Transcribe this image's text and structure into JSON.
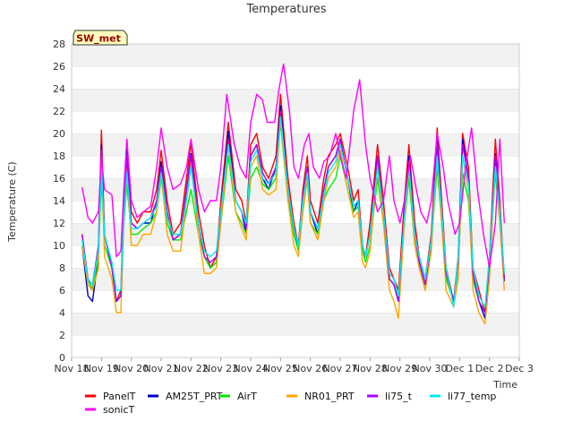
{
  "chart_data": {
    "type": "line",
    "title": "Temperatures",
    "xlabel": "Time",
    "ylabel": "Temperature (C)",
    "site_label": "SW_met",
    "ylim": [
      0,
      28
    ],
    "yticks": [
      0,
      2,
      4,
      6,
      8,
      10,
      12,
      14,
      16,
      18,
      20,
      22,
      24,
      26,
      28
    ],
    "xlim": [
      0,
      15
    ],
    "xticks": [
      {
        "pos": 0,
        "label": "Nov 18"
      },
      {
        "pos": 1,
        "label": "Nov 19"
      },
      {
        "pos": 2,
        "label": "Nov 20"
      },
      {
        "pos": 3,
        "label": "Nov 21"
      },
      {
        "pos": 4,
        "label": "Nov 22"
      },
      {
        "pos": 5,
        "label": "Nov 23"
      },
      {
        "pos": 6,
        "label": "Nov 24"
      },
      {
        "pos": 7,
        "label": "Nov 25"
      },
      {
        "pos": 8,
        "label": "Nov 26"
      },
      {
        "pos": 9,
        "label": "Nov 27"
      },
      {
        "pos": 10,
        "label": "Nov 28"
      },
      {
        "pos": 11,
        "label": "Nov 29"
      },
      {
        "pos": 12,
        "label": "Nov 30"
      },
      {
        "pos": 13,
        "label": "Dec 1"
      },
      {
        "pos": 14,
        "label": "Dec 2"
      },
      {
        "pos": 15,
        "label": "Dec 3"
      }
    ],
    "grid": "horizontal bands",
    "legend_position": "bottom",
    "series": [
      {
        "name": "PanelT",
        "color": "#ff0000",
        "x": [
          0.35,
          0.55,
          0.7,
          0.9,
          1.0,
          1.1,
          1.35,
          1.5,
          1.65,
          1.75,
          1.85,
          2.0,
          2.2,
          2.4,
          2.65,
          2.85,
          3.0,
          3.2,
          3.4,
          3.65,
          3.85,
          4.0,
          4.25,
          4.45,
          4.65,
          4.85,
          5.0,
          5.25,
          5.5,
          5.7,
          5.85,
          6.0,
          6.2,
          6.4,
          6.6,
          6.85,
          7.0,
          7.25,
          7.45,
          7.6,
          7.75,
          7.9,
          8.0,
          8.25,
          8.45,
          8.6,
          8.85,
          9.0,
          9.25,
          9.45,
          9.6,
          9.75,
          9.85,
          10.0,
          10.25,
          10.45,
          10.65,
          10.8,
          10.95,
          11.15,
          11.3,
          11.5,
          11.65,
          11.85,
          12.05,
          12.25,
          12.4,
          12.55,
          12.8,
          12.95,
          13.1,
          13.3,
          13.45,
          13.65,
          13.85,
          14.0,
          14.2,
          14.35,
          14.5
        ],
        "y": [
          11,
          7,
          6,
          10,
          20.3,
          11,
          8,
          5,
          6,
          14,
          19.5,
          13,
          12,
          13,
          13,
          15,
          18.5,
          14,
          11,
          12,
          16,
          19.2,
          13,
          10,
          8,
          9,
          14,
          21,
          15,
          14,
          12,
          19,
          20,
          17,
          16,
          18,
          23.5,
          16,
          12,
          10,
          15,
          18,
          14,
          12,
          16,
          18,
          19,
          20,
          17,
          14,
          15,
          10,
          9,
          12,
          19,
          14,
          8,
          7,
          6,
          14,
          19,
          12,
          9,
          7,
          11,
          20.5,
          14,
          8,
          5,
          9,
          20,
          17,
          8,
          6,
          4,
          9,
          19.5,
          14,
          7
        ]
      },
      {
        "name": "AM25T_PRT",
        "color": "#0000cc",
        "x": [
          0.35,
          0.55,
          0.7,
          0.9,
          1.0,
          1.1,
          1.35,
          1.5,
          1.65,
          1.75,
          1.85,
          2.0,
          2.2,
          2.4,
          2.65,
          2.85,
          3.0,
          3.2,
          3.4,
          3.65,
          3.85,
          4.0,
          4.25,
          4.45,
          4.65,
          4.85,
          5.0,
          5.25,
          5.5,
          5.7,
          5.85,
          6.0,
          6.2,
          6.4,
          6.6,
          6.85,
          7.0,
          7.25,
          7.45,
          7.6,
          7.75,
          7.9,
          8.0,
          8.25,
          8.45,
          8.6,
          8.85,
          9.0,
          9.25,
          9.45,
          9.6,
          9.75,
          9.85,
          10.0,
          10.25,
          10.45,
          10.65,
          10.8,
          10.95,
          11.15,
          11.3,
          11.5,
          11.65,
          11.85,
          12.05,
          12.25,
          12.4,
          12.55,
          12.8,
          12.95,
          13.1,
          13.3,
          13.45,
          13.65,
          13.85,
          14.0,
          14.2,
          14.35,
          14.5
        ],
        "y": [
          10,
          5.5,
          5,
          9,
          19,
          11,
          8,
          5,
          5.5,
          13,
          18.5,
          12,
          11.5,
          12,
          12,
          14,
          17.5,
          13,
          10.5,
          11,
          15,
          18.2,
          12,
          9,
          8,
          8.5,
          13,
          20.2,
          14,
          13,
          11,
          18,
          19,
          16,
          15,
          17,
          22.5,
          15,
          11,
          10,
          14,
          17,
          13,
          11,
          15,
          17,
          18,
          19.5,
          16,
          13,
          14,
          9.5,
          9,
          11,
          18,
          13,
          7,
          6.5,
          5,
          13,
          18,
          11,
          8.5,
          6.5,
          10,
          19.5,
          13,
          7.5,
          5,
          8,
          19.5,
          16,
          7,
          5,
          3.5,
          8,
          18.2,
          13,
          6.8
        ]
      },
      {
        "name": "AirT",
        "color": "#00ee00",
        "x": [
          0.35,
          0.55,
          0.7,
          0.9,
          1.0,
          1.1,
          1.35,
          1.5,
          1.65,
          1.75,
          1.85,
          2.0,
          2.2,
          2.4,
          2.65,
          2.85,
          3.0,
          3.2,
          3.4,
          3.65,
          3.85,
          4.0,
          4.25,
          4.45,
          4.65,
          4.85,
          5.0,
          5.25,
          5.5,
          5.7,
          5.85,
          6.0,
          6.2,
          6.4,
          6.6,
          6.85,
          7.0,
          7.25,
          7.45,
          7.6,
          7.75,
          7.9,
          8.0,
          8.25,
          8.45,
          8.6,
          8.85,
          9.0,
          9.25,
          9.45,
          9.6,
          9.75,
          9.85,
          10.0,
          10.25,
          10.45,
          10.65,
          10.8,
          10.95,
          11.15,
          11.3,
          11.5,
          11.65,
          11.85,
          12.05,
          12.25,
          12.4,
          12.55,
          12.8,
          12.95,
          13.1,
          13.3,
          13.45,
          13.65,
          13.85,
          14.0,
          14.2,
          14.35,
          14.5
        ],
        "y": [
          10,
          7,
          6,
          9,
          16,
          10,
          8,
          5,
          5.5,
          12,
          15.5,
          11,
          11,
          11.5,
          12,
          13,
          16,
          12,
          10.5,
          10.5,
          13,
          15,
          11,
          9,
          8,
          8.5,
          12,
          18,
          13,
          12,
          11,
          16,
          17,
          15.5,
          15,
          16,
          21,
          14,
          11,
          9.5,
          13,
          16,
          12,
          11,
          14,
          15,
          16,
          18,
          15,
          13,
          13.5,
          9.5,
          8.5,
          10,
          16,
          12,
          7,
          6.5,
          5,
          12,
          16,
          10,
          8,
          6,
          10,
          17,
          12,
          7,
          5,
          8,
          16.5,
          14,
          7,
          5,
          4,
          8,
          16.5,
          12,
          7
        ]
      },
      {
        "name": "NR01_PRT",
        "color": "#ffa500",
        "x": [
          0.35,
          0.55,
          0.7,
          0.9,
          1.0,
          1.1,
          1.35,
          1.5,
          1.65,
          1.75,
          1.85,
          2.0,
          2.2,
          2.4,
          2.65,
          2.85,
          3.0,
          3.2,
          3.4,
          3.65,
          3.85,
          4.0,
          4.25,
          4.45,
          4.65,
          4.85,
          5.0,
          5.25,
          5.5,
          5.7,
          5.85,
          6.0,
          6.2,
          6.4,
          6.6,
          6.85,
          7.0,
          7.25,
          7.45,
          7.6,
          7.75,
          7.9,
          8.0,
          8.25,
          8.45,
          8.6,
          8.85,
          9.0,
          9.25,
          9.45,
          9.6,
          9.75,
          9.85,
          10.0,
          10.25,
          10.45,
          10.65,
          10.8,
          10.95,
          11.15,
          11.3,
          11.5,
          11.65,
          11.85,
          12.05,
          12.25,
          12.4,
          12.55,
          12.8,
          12.95,
          13.1,
          13.3,
          13.45,
          13.65,
          13.85,
          14.0,
          14.2,
          14.35,
          14.5
        ],
        "y": [
          10,
          6.5,
          6,
          8,
          18,
          9,
          7,
          4,
          4,
          12,
          17,
          10,
          10,
          11,
          11,
          13,
          16.5,
          11,
          9.5,
          9.5,
          14,
          17.5,
          11,
          7.5,
          7.5,
          8,
          12,
          19,
          13,
          11.5,
          10.5,
          17,
          18,
          15,
          14.5,
          15,
          21.5,
          14,
          10,
          9,
          13,
          16,
          12,
          10.5,
          14,
          16,
          17,
          18.5,
          15,
          12.5,
          13,
          8.5,
          8,
          9.5,
          17,
          12,
          6,
          5,
          3.5,
          12,
          17,
          10,
          8,
          6,
          9.5,
          18,
          12,
          6,
          4.5,
          7,
          18,
          15,
          6,
          4,
          3,
          7,
          17.5,
          12,
          6
        ]
      },
      {
        "name": "li75_t",
        "color": "#aa00ff",
        "x": [
          0.35,
          0.55,
          0.7,
          0.9,
          1.0,
          1.1,
          1.35,
          1.5,
          1.65,
          1.75,
          1.85,
          2.0,
          2.2,
          2.4,
          2.65,
          2.85,
          3.0,
          3.2,
          3.4,
          3.65,
          3.85,
          4.0,
          4.25,
          4.45,
          4.65,
          4.85,
          5.0,
          5.25,
          5.5,
          5.7,
          5.85,
          6.0,
          6.2,
          6.4,
          6.6,
          6.85,
          7.0,
          7.25,
          7.45,
          7.6,
          7.75,
          7.9,
          8.0,
          8.25,
          8.45,
          8.6,
          8.85,
          9.0,
          9.25,
          9.45,
          9.6,
          9.75,
          9.85,
          10.0,
          10.25,
          10.45,
          10.65,
          10.8,
          10.95,
          11.15,
          11.3,
          11.5,
          11.65,
          11.85,
          12.05,
          12.25,
          12.4,
          12.55,
          12.8,
          12.95,
          13.1,
          13.3,
          13.45,
          13.65,
          13.85,
          14.0,
          14.2,
          14.35,
          14.5
        ],
        "y": [
          11,
          7,
          6.5,
          10,
          18.5,
          11,
          8,
          5,
          5.5,
          13,
          18,
          12,
          11.5,
          12,
          12.5,
          14,
          17,
          13,
          10.5,
          11,
          15,
          18,
          12,
          9,
          8.5,
          9,
          13,
          19.5,
          14,
          13,
          11.5,
          18,
          19,
          16.5,
          15.5,
          17,
          22,
          15,
          11.5,
          10,
          14.5,
          17,
          13,
          11.5,
          15,
          17,
          18,
          19.5,
          16,
          13.5,
          14,
          10,
          9,
          11,
          18,
          13,
          7,
          6.5,
          5,
          13,
          17.5,
          11,
          8.5,
          6.5,
          10.5,
          19,
          13,
          7.5,
          5,
          8.5,
          19,
          16,
          7.5,
          5,
          4,
          8.5,
          18,
          13,
          7
        ]
      },
      {
        "name": "li77_temp",
        "color": "#00eeee",
        "x": [
          0.35,
          0.55,
          0.7,
          0.9,
          1.0,
          1.1,
          1.35,
          1.5,
          1.65,
          1.75,
          1.85,
          2.0,
          2.2,
          2.4,
          2.65,
          2.85,
          3.0,
          3.2,
          3.4,
          3.65,
          3.85,
          4.0,
          4.25,
          4.45,
          4.65,
          4.85,
          5.0,
          5.25,
          5.5,
          5.7,
          5.85,
          6.0,
          6.2,
          6.4,
          6.6,
          6.85,
          7.0,
          7.25,
          7.45,
          7.6,
          7.75,
          7.9,
          8.0,
          8.25,
          8.45,
          8.6,
          8.85,
          9.0,
          9.25,
          9.45,
          9.6,
          9.75,
          9.85,
          10.0,
          10.25,
          10.45,
          10.65,
          10.8,
          10.95,
          11.15,
          11.3,
          11.5,
          11.65,
          11.85,
          12.05,
          12.25,
          12.4,
          12.55,
          12.8,
          12.95,
          13.1,
          13.3,
          13.45,
          13.65,
          13.85,
          14.0,
          14.2,
          14.35,
          14.5
        ],
        "y": [
          10.5,
          7,
          6.5,
          9.5,
          17,
          11,
          8.5,
          6,
          6,
          12.5,
          16.5,
          11.5,
          11.5,
          12,
          12.5,
          13.5,
          16.5,
          12.5,
          11,
          11,
          14,
          17,
          12,
          9.5,
          9,
          9.5,
          13,
          19,
          14,
          13,
          12,
          17.5,
          18.5,
          16,
          15.5,
          16.5,
          21.5,
          15,
          11.5,
          10,
          14,
          16.5,
          13,
          11.5,
          14.5,
          16.5,
          17.5,
          19,
          16,
          13.5,
          14,
          10,
          9,
          11,
          17,
          13,
          7.5,
          7,
          5.5,
          12.5,
          17,
          11,
          9,
          7,
          10.5,
          18,
          13,
          8,
          4.5,
          9,
          18,
          15.5,
          8,
          5.5,
          4.5,
          9,
          17,
          13,
          7.5
        ]
      },
      {
        "name": "sonicT",
        "color": "#ff00ff",
        "x": [
          0.35,
          0.55,
          0.7,
          0.9,
          1.0,
          1.1,
          1.35,
          1.5,
          1.65,
          1.75,
          1.85,
          2.0,
          2.2,
          2.4,
          2.65,
          2.85,
          3.0,
          3.2,
          3.4,
          3.65,
          3.85,
          4.0,
          4.25,
          4.45,
          4.65,
          4.85,
          5.0,
          5.2,
          5.45,
          5.65,
          5.85,
          6.0,
          6.2,
          6.4,
          6.55,
          6.8,
          6.95,
          7.1,
          7.3,
          7.45,
          7.6,
          7.8,
          7.95,
          8.1,
          8.3,
          8.45,
          8.65,
          8.85,
          9.0,
          9.2,
          9.45,
          9.65,
          9.85,
          10.0,
          10.25,
          10.45,
          10.65,
          10.8,
          11.0,
          11.15,
          11.35,
          11.55,
          11.7,
          11.9,
          12.05,
          12.25,
          12.45,
          12.6,
          12.85,
          13.0,
          13.2,
          13.4,
          13.6,
          13.8,
          14.0,
          14.2,
          14.35,
          14.5
        ],
        "y": [
          15.2,
          12.5,
          12,
          13,
          18,
          15,
          14.5,
          9,
          9.5,
          15,
          19.5,
          14,
          12.5,
          13,
          13.5,
          17,
          20.5,
          17,
          15,
          15.5,
          17,
          19.5,
          15,
          13,
          14,
          14,
          17,
          23.5,
          19,
          17,
          16,
          21,
          23.5,
          23,
          21,
          21,
          24,
          26.2,
          22,
          17,
          16,
          19,
          20,
          17,
          16,
          17.5,
          18,
          20,
          18,
          16,
          22,
          24.8,
          19,
          16,
          13,
          14,
          18,
          14,
          12,
          14,
          18,
          15,
          13,
          12,
          14,
          20,
          17,
          14,
          11,
          12,
          17,
          20.5,
          15,
          11,
          8,
          12,
          19.5,
          12
        ]
      }
    ]
  },
  "legend": {
    "title": ""
  }
}
